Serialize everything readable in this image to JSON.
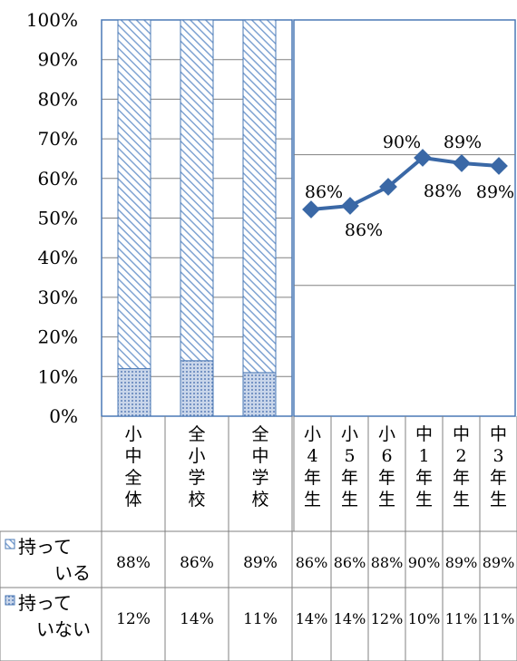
{
  "chart_data": {
    "type": "bar+line",
    "ylim": [
      0,
      100
    ],
    "y_ticks": [
      "0%",
      "10%",
      "20%",
      "30%",
      "40%",
      "50%",
      "60%",
      "70%",
      "80%",
      "90%",
      "100%"
    ],
    "bar": {
      "categories": [
        "小中全体",
        "全小学校",
        "全中学校"
      ],
      "series": [
        {
          "name": "持っている",
          "values": [
            88,
            86,
            89
          ],
          "labels": [
            "88%",
            "86%",
            "89%"
          ],
          "color": "#a9c3e3",
          "pattern": "diagonal"
        },
        {
          "name": "持っていない",
          "values": [
            12,
            14,
            11
          ],
          "labels": [
            "12%",
            "14%",
            "11%"
          ],
          "color": "#7c9ccc",
          "pattern": "crosshatch"
        }
      ]
    },
    "line": {
      "categories": [
        "小4年生",
        "小5年生",
        "小6年生",
        "中1年生",
        "中2年生",
        "中3年生"
      ],
      "series": [
        {
          "name": "持っている",
          "values": [
            86,
            86,
            88,
            90,
            89,
            89
          ],
          "labels": [
            "86%",
            "86%",
            "88%",
            "90%",
            "89%",
            "89%"
          ],
          "color": "#3a68a6"
        },
        {
          "name": "持っていない",
          "values": [
            14,
            14,
            12,
            10,
            11,
            11
          ],
          "labels": [
            "14%",
            "14%",
            "12%",
            "10%",
            "11%",
            "11%"
          ]
        }
      ]
    }
  }
}
